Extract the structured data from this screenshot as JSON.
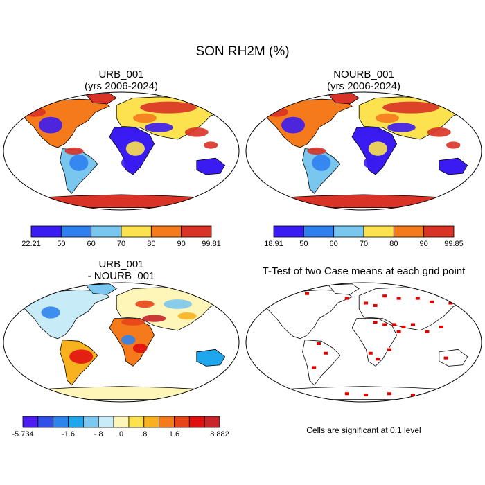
{
  "figure": {
    "title": "SON RH2M (%)"
  },
  "panels": [
    {
      "id": "urb",
      "title_line1": "URB_001",
      "title_line2": "(yrs 2006-2024)"
    },
    {
      "id": "nourb",
      "title_line1": "NOURB_001",
      "title_line2": "(yrs 2006-2024)"
    },
    {
      "id": "diff",
      "title_line1": "URB_001",
      "title_line2": "- NOURB_001"
    },
    {
      "id": "ttest",
      "title_line1": "T-Test of two Case means at each grid point",
      "title_line2": ""
    }
  ],
  "colorbars": {
    "urb": {
      "colors": [
        "#3a1cf2",
        "#2f7fee",
        "#79c6ee",
        "#fbe24e",
        "#f57a1c",
        "#d93226"
      ],
      "labels": [
        "22.21",
        "50",
        "60",
        "70",
        "80",
        "90",
        "99.81"
      ]
    },
    "nourb": {
      "colors": [
        "#3a1cf2",
        "#2f7fee",
        "#79c6ee",
        "#fbe24e",
        "#f57a1c",
        "#d93226"
      ],
      "labels": [
        "18.91",
        "50",
        "60",
        "70",
        "80",
        "90",
        "99.85"
      ]
    },
    "diff": {
      "colors": [
        "#4d1df0",
        "#2f4fe8",
        "#2f84ec",
        "#1fa7ee",
        "#7cc8f0",
        "#c8ecf7",
        "#fdf6b8",
        "#fbe24e",
        "#f8b21f",
        "#f57a1c",
        "#e8441c",
        "#e00f10",
        "#c8252b"
      ],
      "labels": [
        "-5.734",
        "-1.6",
        "-.8",
        "0",
        ".8",
        "1.6",
        "8.882"
      ],
      "label_slots": [
        0,
        3,
        5,
        6.5,
        8,
        10,
        13
      ]
    }
  },
  "significance_note": "Cells are significant at 0.1 level",
  "significance_color": "#e00000"
}
